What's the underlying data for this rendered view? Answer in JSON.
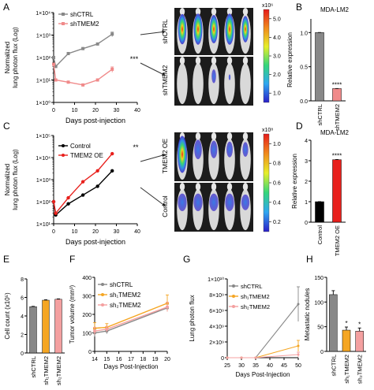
{
  "colors": {
    "grey": "#888888",
    "pink": "#f08a8a",
    "black": "#000000",
    "red": "#e8201c",
    "orange": "#f5a623",
    "salmon": "#f4a0a0",
    "mouse_bg": "#1c1c1c"
  },
  "panel_letters": {
    "a": "A",
    "b": "B",
    "c": "C",
    "d": "D",
    "e": "E",
    "f": "F",
    "g": "G",
    "h": "H"
  },
  "chart_data": [
    {
      "id": "A",
      "type": "line",
      "xlabel": "Days post-injection",
      "ylabel": "Normalized lung photon flux (Log)",
      "ylabel_lines": [
        "Normalized",
        "lung photon flux (Log)"
      ],
      "yscale": "log",
      "xlim": [
        0,
        40
      ],
      "ylim": [
        1,
        10000
      ],
      "xticks": [
        0,
        10,
        20,
        30,
        40
      ],
      "xtick_labels": [
        "0",
        "10",
        "20",
        "30",
        "40"
      ],
      "ytick_labels": [
        "1×10⁰",
        "1×10¹",
        "1×10²",
        "1×10³",
        "1×10⁴"
      ],
      "significance": "***",
      "series": [
        {
          "name": "shCTRL",
          "x": [
            0,
            1,
            7,
            14,
            21,
            28
          ],
          "y": [
            100,
            40,
            150,
            250,
            400,
            1100
          ]
        },
        {
          "name": "shTMEM2",
          "x": [
            0,
            1,
            7,
            14,
            21,
            28
          ],
          "y": [
            50,
            10,
            8,
            6,
            10,
            30
          ]
        }
      ]
    },
    {
      "id": "B",
      "type": "bar",
      "title": "MDA-LM2",
      "ylabel": "Relative expression",
      "ylim": [
        0,
        1.2
      ],
      "ytick_labels": [
        "0.0",
        "0.5",
        "1.0"
      ],
      "categories": [
        "shCTRL",
        "shTMEM2"
      ],
      "values": [
        1.0,
        0.18
      ],
      "significance": "****"
    },
    {
      "id": "C",
      "type": "line",
      "xlabel": "Days post-injection",
      "ylabel": "Normalized lung photon flux (Log)",
      "ylabel_lines": [
        "Normalized",
        "lung photon flux (Log)"
      ],
      "yscale": "log",
      "xlim": [
        0,
        40
      ],
      "ylim": [
        10,
        100000
      ],
      "xticks": [
        0,
        10,
        20,
        30,
        40
      ],
      "xtick_labels": [
        "0",
        "10",
        "20",
        "30",
        "40"
      ],
      "ytick_labels": [
        "1×10¹",
        "1×10²",
        "1×10³",
        "1×10⁴",
        "1×10⁵"
      ],
      "significance": "**",
      "series": [
        {
          "name": "Control",
          "x": [
            0,
            1,
            7,
            14,
            21,
            28
          ],
          "y": [
            100,
            25,
            80,
            200,
            500,
            2500
          ]
        },
        {
          "name": "TMEM2 OE",
          "x": [
            0,
            1,
            7,
            14,
            21,
            28
          ],
          "y": [
            100,
            30,
            150,
            800,
            2500,
            15000
          ]
        }
      ]
    },
    {
      "id": "D",
      "type": "bar",
      "title": "MDA-LM2",
      "ylabel": "Relative expression",
      "ylim": [
        0,
        4
      ],
      "ytick_labels": [
        "0",
        "1",
        "2",
        "3",
        "4"
      ],
      "categories": [
        "Control",
        "TMEM2 OE"
      ],
      "values": [
        1.0,
        3.05
      ],
      "significance": "****"
    },
    {
      "id": "E",
      "type": "bar",
      "ylabel": "Cell count (x10⁵)",
      "ylim": [
        0,
        8
      ],
      "ytick_labels": [
        "0",
        "2",
        "4",
        "6",
        "8"
      ],
      "categories": [
        "shCTRL",
        "sh₁TMEM2",
        "sh₂TMEM2"
      ],
      "values": [
        5.0,
        5.7,
        5.8
      ]
    },
    {
      "id": "F",
      "type": "line",
      "xlabel": "Days Post-Injection",
      "ylabel": "Tumor volume (mm³)",
      "xlim": [
        14,
        20
      ],
      "ylim": [
        0,
        400
      ],
      "xticks": [
        14,
        15,
        16,
        17,
        18,
        19,
        20
      ],
      "yticks": [
        0,
        100,
        200,
        300,
        400
      ],
      "series": [
        {
          "name": "shCTRL",
          "x": [
            14,
            15,
            20
          ],
          "y": [
            100,
            110,
            235
          ]
        },
        {
          "name": "sh₁TMEM2",
          "x": [
            14,
            15,
            20
          ],
          "y": [
            125,
            130,
            260
          ]
        },
        {
          "name": "sh₂TMEM2",
          "x": [
            14,
            15,
            20
          ],
          "y": [
            110,
            120,
            240
          ]
        }
      ]
    },
    {
      "id": "G",
      "type": "line",
      "ylabel": "Lung photon flux",
      "xlabel": "Days Post-Injection",
      "xlim": [
        25,
        50
      ],
      "ylim": [
        0,
        10000000000
      ],
      "xticks": [
        25,
        30,
        35,
        40,
        45,
        50
      ],
      "ytick_labels": [
        "0",
        "2×10⁹",
        "4×10⁹",
        "6×10⁹",
        "8×10⁹",
        "1×10¹⁰"
      ],
      "series": [
        {
          "name": "shCTRL",
          "x": [
            25,
            30,
            35,
            50
          ],
          "y": [
            0,
            0,
            0,
            6800000000
          ]
        },
        {
          "name": "sh₁TMEM2",
          "x": [
            25,
            30,
            35,
            50
          ],
          "y": [
            0,
            0,
            0,
            1500000000
          ]
        },
        {
          "name": "sh₂TMEM2",
          "x": [
            25,
            30,
            35,
            50
          ],
          "y": [
            0,
            0,
            0,
            400000000
          ]
        }
      ]
    },
    {
      "id": "H",
      "type": "bar",
      "ylabel": "Metastatic nodules",
      "ylim": [
        0,
        150
      ],
      "ytick_labels": [
        "0",
        "50",
        "100",
        "150"
      ],
      "categories": [
        "shCTRL",
        "sh₁TMEM2",
        "sh₂TMEM2"
      ],
      "values": [
        115,
        43,
        41
      ],
      "significance": [
        "",
        "*",
        "*"
      ]
    }
  ],
  "imaging": {
    "top": {
      "row_labels": [
        "shCTRL",
        "shTMEM2"
      ],
      "colorbar_title": "x10⁶",
      "colorbar_ticks": [
        "5.0",
        "4.0",
        "3.0",
        "2.0",
        "1.0"
      ]
    },
    "bottom": {
      "row_labels": [
        "TMEM2 OE",
        "Control"
      ],
      "colorbar_title": "x10⁸",
      "colorbar_ticks": [
        "1.0",
        "0.8",
        "0.6",
        "0.4",
        "0.2"
      ]
    }
  }
}
